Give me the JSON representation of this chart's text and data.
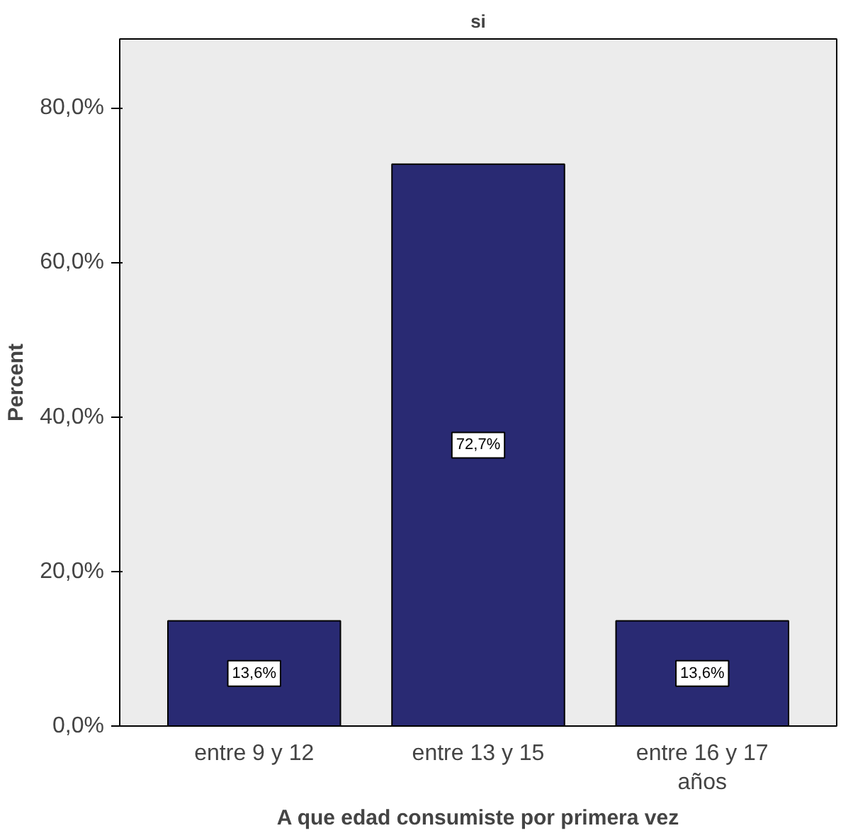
{
  "chart_data": {
    "type": "bar",
    "title": "si",
    "xlabel": "A que edad consumiste por primera vez",
    "ylabel": "Percent",
    "categories": [
      "entre 9 y 12",
      "entre 13 y 15",
      "entre 16 y 17 años"
    ],
    "values": [
      13.6,
      72.7,
      13.6
    ],
    "color": "#292a73",
    "value_labels": [
      "13,6%",
      "72,7%",
      "13,6%"
    ],
    "ylim": [
      0,
      88.9
    ],
    "yticks": [
      {
        "value": 0,
        "label": "0,0%"
      },
      {
        "value": 20,
        "label": "20,0%"
      },
      {
        "value": 40,
        "label": "40,0%"
      },
      {
        "value": 60,
        "label": "60,0%"
      },
      {
        "value": 80,
        "label": "80,0%"
      }
    ],
    "grid": false
  }
}
